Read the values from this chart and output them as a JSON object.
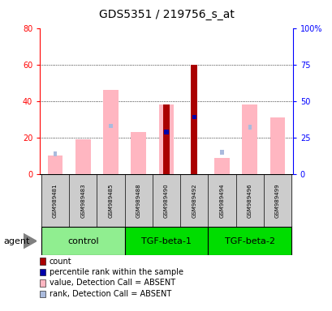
{
  "title": "GDS5351 / 219756_s_at",
  "samples": [
    "GSM989481",
    "GSM989483",
    "GSM989485",
    "GSM989488",
    "GSM989490",
    "GSM989492",
    "GSM989494",
    "GSM989496",
    "GSM989499"
  ],
  "group_configs": [
    {
      "label": "control",
      "start": 0,
      "end": 3,
      "color": "#90EE90"
    },
    {
      "label": "TGF-beta-1",
      "start": 3,
      "end": 6,
      "color": "#00DD00"
    },
    {
      "label": "TGF-beta-2",
      "start": 6,
      "end": 9,
      "color": "#00DD00"
    }
  ],
  "absent_value_bars": [
    10,
    19,
    46,
    23,
    38,
    null,
    9,
    38,
    31
  ],
  "absent_rank_bars": [
    14,
    null,
    33,
    null,
    null,
    39,
    15,
    32,
    null
  ],
  "count_bars": [
    null,
    null,
    null,
    null,
    38,
    60,
    null,
    null,
    null
  ],
  "pct_rank_bars": [
    null,
    null,
    null,
    null,
    29,
    39,
    null,
    null,
    null
  ],
  "left_ylim": [
    0,
    80
  ],
  "right_ylim": [
    0,
    100
  ],
  "left_yticks": [
    0,
    20,
    40,
    60,
    80
  ],
  "right_yticks": [
    0,
    25,
    50,
    75,
    100
  ],
  "right_yticklabels": [
    "0",
    "25",
    "50",
    "75",
    "100%"
  ],
  "color_count": "#AA0000",
  "color_pct_rank": "#0000AA",
  "color_absent_value": "#FFB6C1",
  "color_absent_rank": "#AABBDD",
  "legend_entries": [
    {
      "color": "#AA0000",
      "label": "count"
    },
    {
      "color": "#0000AA",
      "label": "percentile rank within the sample"
    },
    {
      "color": "#FFB6C1",
      "label": "value, Detection Call = ABSENT"
    },
    {
      "color": "#AABBDD",
      "label": "rank, Detection Call = ABSENT"
    }
  ]
}
